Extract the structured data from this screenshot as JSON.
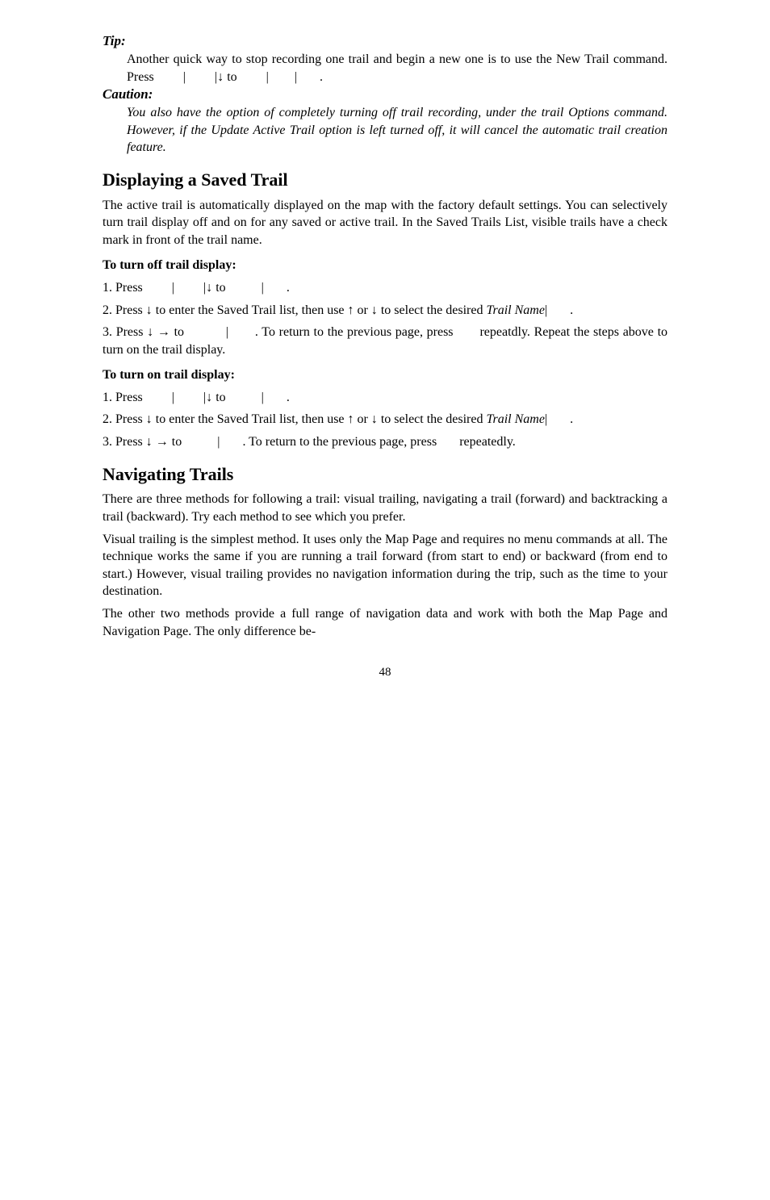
{
  "tip": {
    "label": "Tip:",
    "body_part1": "Another quick way to stop recording one trail and begin a new one is to use the New Trail command. Press ",
    "sep1": "|",
    "sep2": "|",
    "arrow_down": "↓",
    "to": " to ",
    "sep3": "|",
    "sep4": "|",
    "period": "."
  },
  "caution": {
    "label": "Caution:",
    "body": "You also have the option of completely turning off trail recording, under the trail Options command. However, if the Update Active Trail option is left turned off, it will cancel the automatic trail creation feature."
  },
  "displaying": {
    "heading": "Displaying a Saved Trail",
    "intro": "The active trail is automatically displayed on the map with the factory default settings. You can selectively turn trail display off and on for any saved or active trail. In the Saved Trails List, visible trails have a check mark in front of the trail name.",
    "off": {
      "subhead": "To turn off trail display:",
      "step1_a": "1. Press ",
      "step1_sep1": "|",
      "step1_sep2": "|",
      "step1_down": "↓",
      "step1_to": " to ",
      "step1_sep3": "|",
      "step1_period": ".",
      "step2_a": "2. Press ",
      "step2_down": "↓",
      "step2_b": " to enter the Saved Trail list, then use ",
      "step2_up": "↑",
      "step2_or": " or ",
      "step2_down2": "↓",
      "step2_c": " to select the desired ",
      "step2_trailname": "Trail Name",
      "step2_sep": "|",
      "step2_period": ".",
      "step3_a": "3. Press ",
      "step3_down": "↓",
      "step3_right": "→",
      "step3_to": " to ",
      "step3_sep": "|",
      "step3_b": ". To return to the previous page, press ",
      "step3_c": "repeatdly. Repeat the steps above to turn on the trail display."
    },
    "on": {
      "subhead": "To turn on trail display:",
      "step1_a": "1. Press ",
      "step1_sep1": "|",
      "step1_sep2": "|",
      "step1_down": "↓",
      "step1_to": " to ",
      "step1_sep3": "|",
      "step1_period": ".",
      "step2_a": "2. Press ",
      "step2_down": "↓",
      "step2_b": " to enter the Saved Trail list, then use ",
      "step2_up": "↑",
      "step2_or": " or ",
      "step2_down2": "↓",
      "step2_c": " to select the desired ",
      "step2_trailname": "Trail Name",
      "step2_sep": "|",
      "step2_period": ".",
      "step3_a": "3. Press ",
      "step3_down": "↓",
      "step3_right": "→",
      "step3_to": " to ",
      "step3_sep": "|",
      "step3_b": ". To return to the previous page, press ",
      "step3_c": "repeatedly."
    }
  },
  "navigating": {
    "heading": "Navigating Trails",
    "p1": "There are three methods for following a trail: visual trailing, navigating a trail (forward) and backtracking a trail (backward). Try each method to see which you prefer.",
    "p2": "Visual trailing is the simplest method. It uses only the Map Page and requires no menu commands at all. The technique works the same if you are running a trail forward (from start to end) or backward (from end to start.) However, visual trailing provides no navigation information during the trip, such as the time to your destination.",
    "p3": "The other two methods provide a full range of navigation data and work with both the Map Page and Navigation Page. The only difference be-"
  },
  "page_number": "48"
}
